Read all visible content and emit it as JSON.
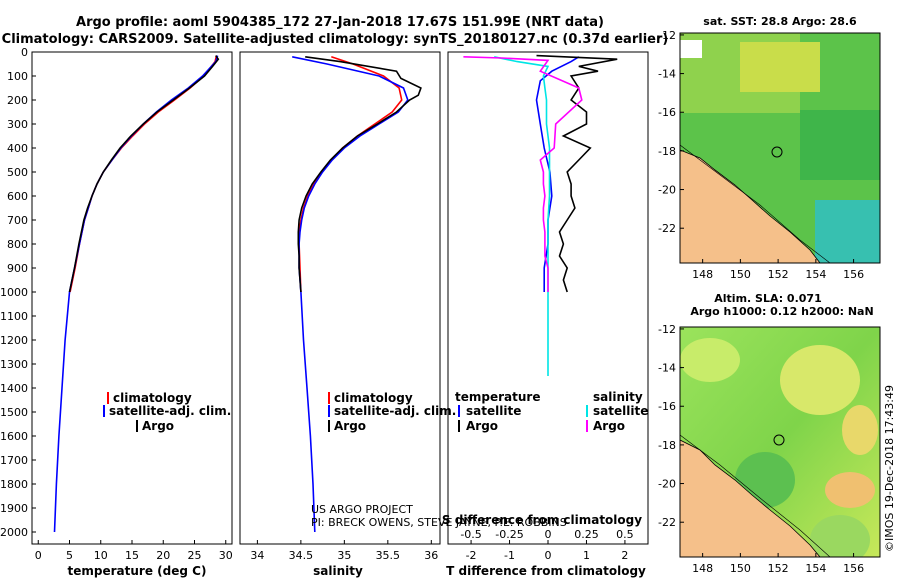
{
  "title": {
    "line1": "Argo profile: aoml 5904385_172 27-Jan-2018 17.67S 151.99E (NRT data)",
    "line2": "Climatology: CARS2009. Satellite-adjusted climatology: synTS_20180127.nc (0.37d earlier)"
  },
  "project": {
    "line1": "US ARGO PROJECT",
    "line2": "PI: BRECK OWENS, STEVE JAYNE, P.E. ROBBINS"
  },
  "credit": "©IMOS 19-Dec-2018 17:43:49",
  "colors": {
    "clim": "#ff0000",
    "sat": "#0000ff",
    "argo": "#000000",
    "sal_sat": "#00e5e5",
    "sal_argo": "#ff00ff",
    "land": "#f5c08a"
  },
  "depth_axis": {
    "ylim": [
      0,
      2050
    ],
    "ticks": [
      0,
      100,
      200,
      300,
      400,
      500,
      600,
      700,
      800,
      900,
      1000,
      1100,
      1200,
      1300,
      1400,
      1500,
      1600,
      1700,
      1800,
      1900,
      2000
    ]
  },
  "legend_temp": [
    "climatology",
    "satellite-adj. clim.",
    "Argo"
  ],
  "legend_sal": [
    "climatology",
    "satellite-adj. clim.",
    "Argo"
  ],
  "legend_diff": {
    "left_title": "temperature",
    "right_title": "salinity",
    "left": [
      "satellite",
      "Argo"
    ],
    "right": [
      "satellite",
      "Argo"
    ]
  },
  "chart_data": [
    {
      "type": "line",
      "name": "temperature",
      "xlabel": "temperature (deg C)",
      "xlim": [
        -1,
        31
      ],
      "xticks": [
        0,
        5,
        10,
        15,
        20,
        25,
        30
      ],
      "series": [
        {
          "name": "climatology",
          "color": "#ff0000",
          "depth": [
            15,
            40,
            100,
            150,
            200,
            250,
            300,
            350,
            400,
            450,
            500,
            550,
            600,
            650,
            700,
            800,
            900,
            1000
          ],
          "values": [
            28.5,
            28.3,
            26.5,
            24.3,
            21.8,
            19.2,
            17.0,
            15.1,
            13.3,
            11.8,
            10.4,
            9.4,
            8.6,
            8.0,
            7.4,
            6.6,
            5.9,
            5.1
          ]
        },
        {
          "name": "satellite-adj. clim.",
          "color": "#0000ff",
          "depth": [
            15,
            40,
            100,
            150,
            200,
            250,
            300,
            350,
            400,
            450,
            500,
            550,
            600,
            650,
            700,
            800,
            900,
            1000,
            1200,
            1400,
            1600,
            1800,
            2000
          ],
          "values": [
            28.7,
            28.4,
            26.3,
            24.0,
            21.3,
            18.9,
            16.8,
            14.9,
            13.2,
            11.8,
            10.4,
            9.4,
            8.6,
            8.0,
            7.4,
            6.6,
            5.8,
            5.0,
            4.3,
            3.8,
            3.3,
            2.9,
            2.6
          ]
        },
        {
          "name": "Argo",
          "color": "#000000",
          "depth": [
            15,
            30,
            60,
            100,
            150,
            200,
            250,
            300,
            350,
            400,
            450,
            500,
            550,
            600,
            650,
            700,
            800,
            900,
            1000
          ],
          "values": [
            28.4,
            28.8,
            27.9,
            26.6,
            24.2,
            21.6,
            19.0,
            16.8,
            14.8,
            13.1,
            11.7,
            10.4,
            9.4,
            8.6,
            7.9,
            7.3,
            6.5,
            5.8,
            5.0
          ]
        }
      ]
    },
    {
      "type": "line",
      "name": "salinity",
      "xlabel": "salinity",
      "xlim": [
        33.8,
        36.1
      ],
      "xticks": [
        34,
        34.5,
        35,
        35.5,
        36
      ],
      "series": [
        {
          "name": "climatology",
          "color": "#ff0000",
          "depth": [
            20,
            50,
            100,
            150,
            200,
            250,
            300,
            350,
            400,
            450,
            500,
            550,
            600,
            650,
            700,
            750,
            800,
            900,
            1000
          ],
          "values": [
            34.85,
            35.1,
            35.45,
            35.63,
            35.66,
            35.55,
            35.35,
            35.15,
            34.98,
            34.85,
            34.74,
            34.65,
            34.58,
            34.53,
            34.5,
            34.48,
            34.48,
            34.49,
            34.5
          ]
        },
        {
          "name": "satellite-adj. clim.",
          "color": "#0000ff",
          "depth": [
            20,
            50,
            100,
            150,
            200,
            250,
            300,
            350,
            400,
            450,
            500,
            550,
            600,
            650,
            700,
            750,
            800,
            900,
            1000,
            1200,
            1400,
            1600,
            1800,
            2000
          ],
          "values": [
            34.4,
            34.8,
            35.4,
            35.68,
            35.73,
            35.62,
            35.4,
            35.18,
            35.0,
            34.86,
            34.75,
            34.66,
            34.59,
            34.54,
            34.51,
            34.49,
            34.48,
            34.48,
            34.5,
            34.53,
            34.57,
            34.61,
            34.64,
            34.66
          ]
        },
        {
          "name": "Argo",
          "color": "#000000",
          "depth": [
            20,
            40,
            80,
            110,
            150,
            180,
            200,
            250,
            300,
            350,
            400,
            450,
            500,
            550,
            600,
            650,
            700,
            750,
            800,
            850,
            900,
            950,
            1000
          ],
          "values": [
            34.55,
            34.95,
            35.6,
            35.65,
            35.88,
            35.85,
            35.75,
            35.6,
            35.38,
            35.15,
            34.98,
            34.84,
            34.73,
            34.63,
            34.56,
            34.51,
            34.48,
            34.47,
            34.47,
            34.48,
            34.48,
            34.49,
            34.5
          ]
        }
      ]
    },
    {
      "type": "line",
      "name": "difference",
      "xlabel": "T difference from climatology",
      "xlabel_top": "S difference from climatology",
      "xlim": [
        -2.6,
        2.6
      ],
      "xticks": [
        -2,
        -1,
        0,
        1,
        2
      ],
      "sticks": [
        -0.5,
        -0.25,
        0,
        0.25,
        0.5
      ],
      "series": [
        {
          "name": "T satellite",
          "color": "#0000ff",
          "depth": [
            20,
            40,
            80,
            120,
            200,
            300,
            400,
            500,
            600,
            700,
            800,
            900,
            1000
          ],
          "values": [
            0.8,
            0.6,
            0.1,
            -0.2,
            -0.3,
            -0.2,
            -0.1,
            0.05,
            0.1,
            0.0,
            0.0,
            -0.1,
            -0.1
          ]
        },
        {
          "name": "T Argo",
          "color": "#000000",
          "depth": [
            15,
            30,
            60,
            80,
            100,
            150,
            200,
            250,
            300,
            350,
            400,
            450,
            500,
            550,
            600,
            650,
            700,
            750,
            800,
            850,
            900,
            950,
            1000
          ],
          "values": [
            -0.3,
            1.8,
            0.8,
            1.3,
            0.6,
            0.8,
            0.6,
            1.0,
            1.0,
            0.4,
            1.1,
            0.8,
            0.5,
            0.6,
            0.6,
            0.7,
            0.5,
            0.3,
            0.4,
            0.3,
            0.5,
            0.4,
            0.5
          ]
        },
        {
          "name": "S satellite",
          "color": "#00e5e5",
          "depth": [
            20,
            40,
            60,
            100,
            150,
            200,
            300,
            400,
            500,
            600,
            700,
            800,
            900,
            1000,
            1100,
            1200,
            1300,
            1350
          ],
          "values": [
            -0.35,
            -0.2,
            0.0,
            -0.03,
            -0.02,
            -0.01,
            -0.01,
            0.01,
            0.01,
            0.01,
            0.0,
            0.0,
            0.0,
            0.0,
            0.0,
            0.0,
            0.0,
            0.0
          ]
        },
        {
          "name": "S Argo",
          "color": "#ff00ff",
          "depth": [
            20,
            25,
            35,
            80,
            150,
            200,
            300,
            400,
            450,
            500,
            550,
            600,
            650,
            700,
            750,
            800,
            850,
            900,
            950,
            1000
          ],
          "values": [
            -0.55,
            -0.3,
            0.0,
            -0.05,
            0.2,
            0.22,
            0.05,
            0.04,
            -0.05,
            -0.03,
            -0.03,
            -0.02,
            -0.03,
            -0.03,
            -0.02,
            -0.02,
            -0.02,
            0.0,
            0.0,
            0.0
          ]
        }
      ]
    },
    {
      "type": "heatmap",
      "name": "sst-map",
      "title": "sat. SST: 28.8 Argo: 28.6",
      "xticks": [
        148,
        150,
        152,
        154,
        156
      ],
      "yticks": [
        -12,
        -14,
        -16,
        -18,
        -20,
        -22
      ],
      "xlim": [
        146.8,
        157.4
      ],
      "ylim": [
        -23.8,
        -11.9
      ],
      "argo_position": [
        151.99,
        -17.67
      ]
    },
    {
      "type": "heatmap",
      "name": "sla-map",
      "title1": "Altim. SLA: 0.071",
      "title2": "Argo h1000: 0.12 h2000: NaN",
      "xticks": [
        148,
        150,
        152,
        154,
        156
      ],
      "yticks": [
        -12,
        -14,
        -16,
        -18,
        -20,
        -22
      ],
      "xlim": [
        146.8,
        157.4
      ],
      "ylim": [
        -23.8,
        -11.9
      ],
      "argo_position": [
        151.99,
        -17.67
      ]
    }
  ]
}
